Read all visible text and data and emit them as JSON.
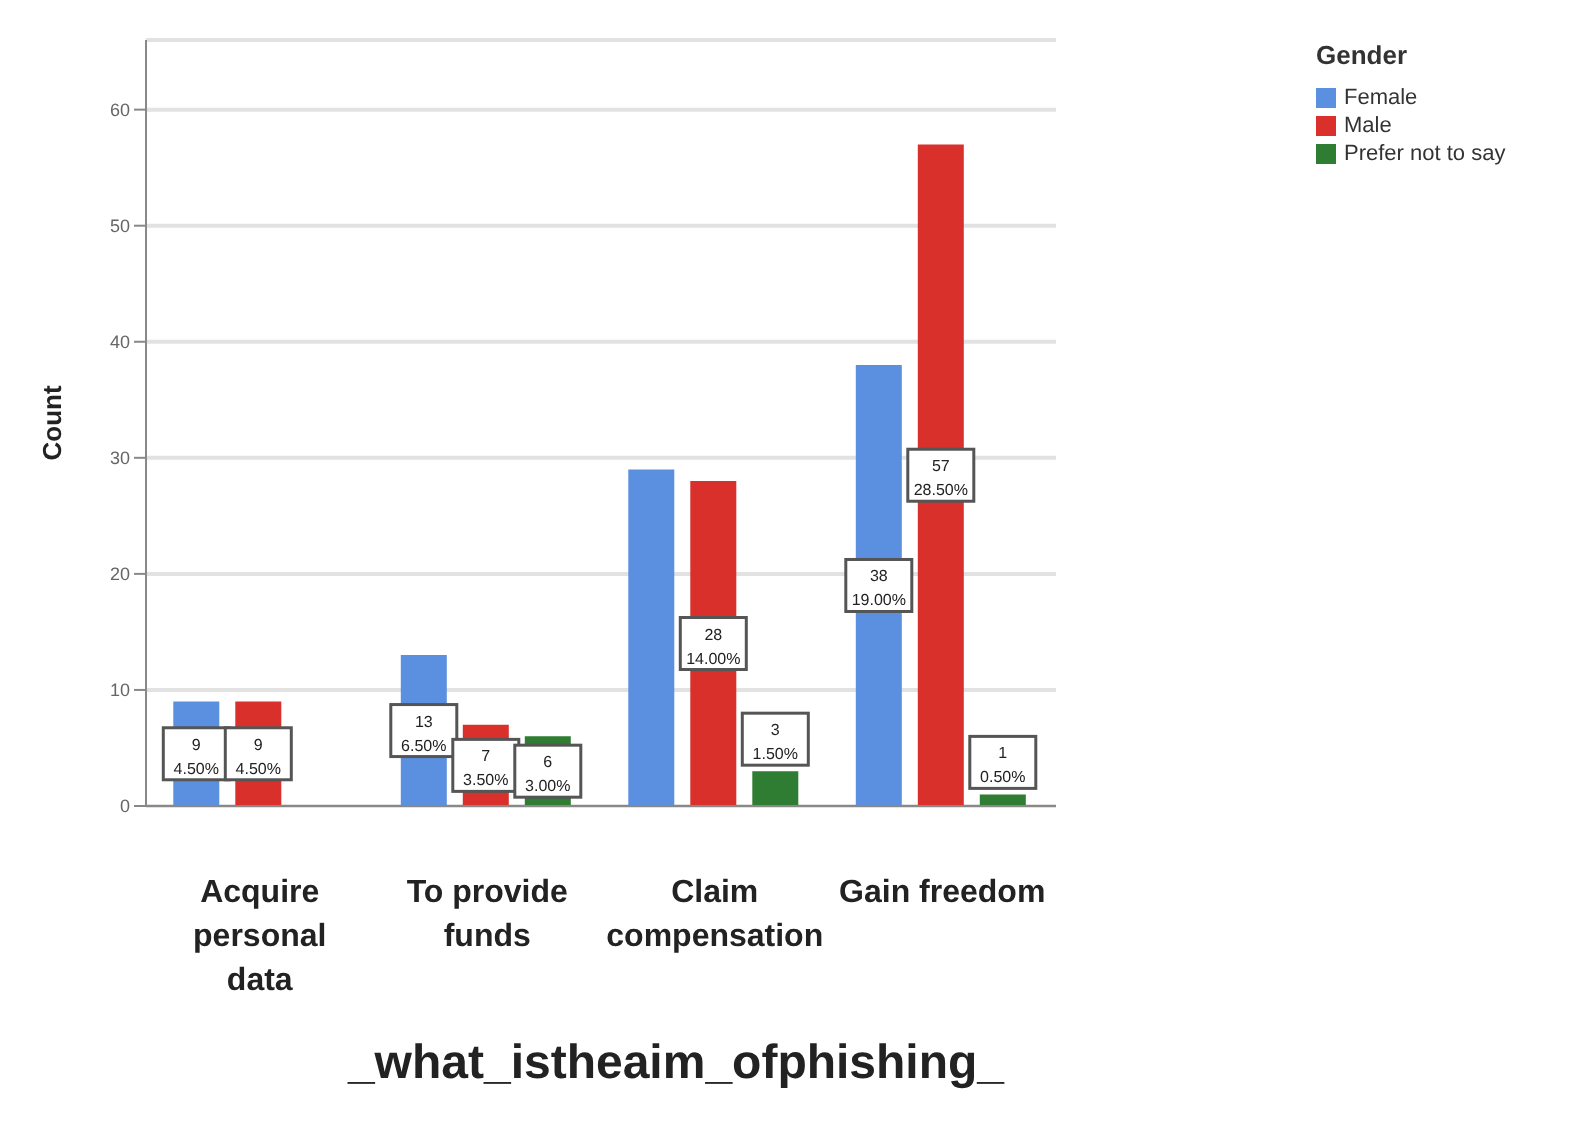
{
  "chart_data": {
    "type": "bar",
    "xlabel": "_what_istheaim_ofphishing_",
    "ylabel": "Count",
    "legend_title": "Gender",
    "categories": [
      "Acquire personal data",
      "To provide funds",
      "Claim compensation",
      "Gain freedom"
    ],
    "series": [
      {
        "name": "Female",
        "color": "#5b8fe0",
        "values": [
          9,
          13,
          29,
          38
        ],
        "value_labels": [
          "9\n4.50%",
          "13\n6.50%",
          null,
          "38\n19.00%"
        ]
      },
      {
        "name": "Male",
        "color": "#d9302c",
        "values": [
          9,
          7,
          28,
          57
        ],
        "value_labels": [
          "9\n4.50%",
          "7\n3.50%",
          "28\n14.00%",
          "57\n28.50%"
        ]
      },
      {
        "name": "Prefer not to say",
        "color": "#2e7d32",
        "values": [
          null,
          6,
          3,
          1
        ],
        "value_labels": [
          null,
          "6\n3.00%",
          "3\n1.50%",
          "1\n0.50%"
        ]
      }
    ],
    "ylim": [
      0,
      66
    ],
    "yticks": [
      0,
      10,
      20,
      30,
      40,
      50,
      60
    ],
    "grid": "y",
    "legend": "top right"
  }
}
